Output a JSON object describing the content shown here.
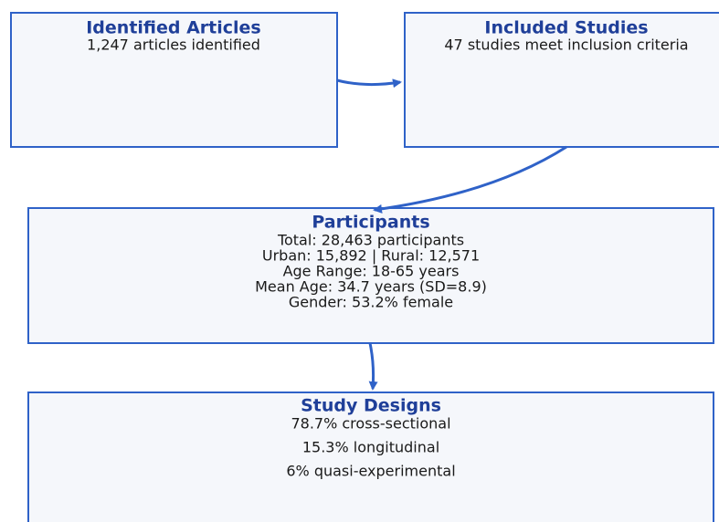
{
  "nodes": [
    {
      "title": "Identified Articles",
      "lines": [
        "1,247 articles identified"
      ]
    },
    {
      "title": "Included Studies",
      "lines": [
        "47 studies meet inclusion criteria"
      ]
    },
    {
      "title": "Participants",
      "lines": [
        "Total: 28,463 participants",
        "Urban: 15,892 | Rural: 12,571",
        "Age Range: 18-65 years",
        "Mean Age: 34.7 years (SD=8.9)",
        "Gender: 53.2% female"
      ]
    },
    {
      "title": "Study Designs",
      "lines": [
        "78.7% cross-sectional",
        "15.3% longitudinal",
        "6% quasi-experimental"
      ]
    }
  ]
}
